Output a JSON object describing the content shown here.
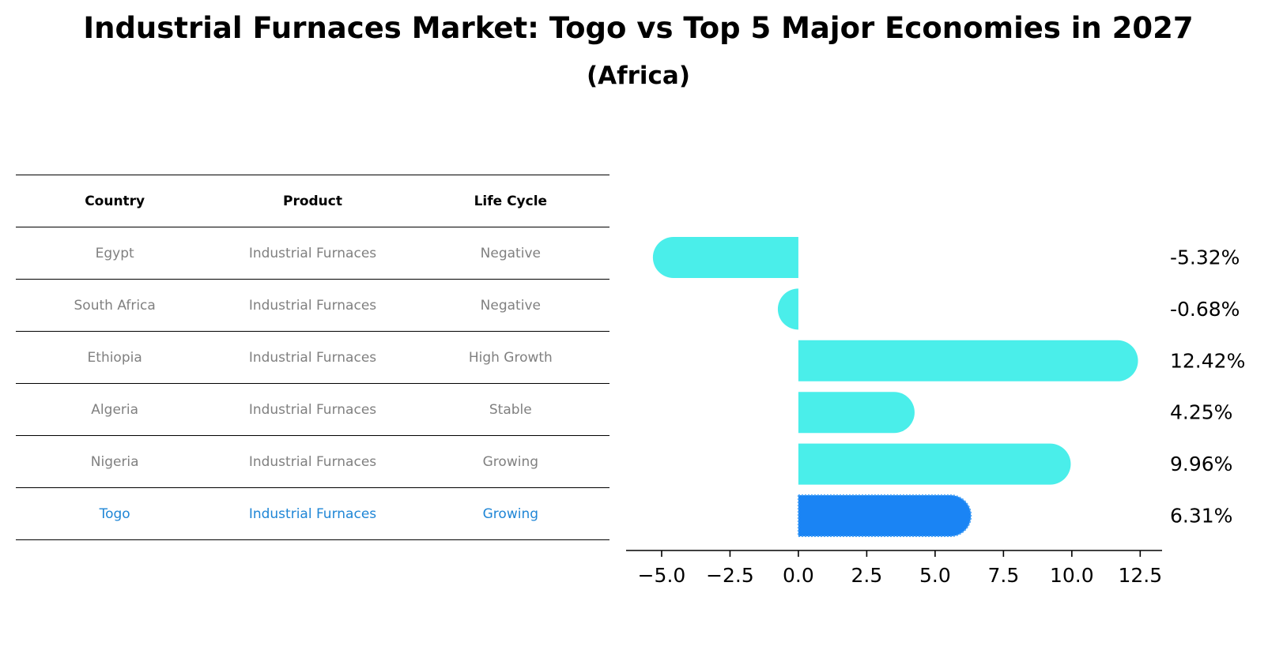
{
  "header": {
    "title": "Industrial Furnaces Market: Togo vs Top 5 Major Economies in 2027",
    "subtitle": "(Africa)"
  },
  "table": {
    "columns": [
      "Country",
      "Product",
      "Life Cycle"
    ],
    "rows": [
      {
        "country": "Egypt",
        "product": "Industrial Furnaces",
        "life_cycle": "Negative",
        "highlight": false
      },
      {
        "country": "South Africa",
        "product": "Industrial Furnaces",
        "life_cycle": "Negative",
        "highlight": false
      },
      {
        "country": "Ethiopia",
        "product": "Industrial Furnaces",
        "life_cycle": "High Growth",
        "highlight": false
      },
      {
        "country": "Algeria",
        "product": "Industrial Furnaces",
        "life_cycle": "Stable",
        "highlight": false
      },
      {
        "country": "Nigeria",
        "product": "Industrial Furnaces",
        "life_cycle": "Growing",
        "highlight": false
      },
      {
        "country": "Togo",
        "product": "Industrial Furnaces",
        "life_cycle": "Growing",
        "highlight": true
      }
    ]
  },
  "colors": {
    "bar": "#4aeeea",
    "bar_highlight": "#1a84f4",
    "table_text": "#808080",
    "table_highlight_text": "#1f86d6"
  },
  "chart_data": {
    "type": "bar",
    "orientation": "horizontal",
    "categories": [
      "Egypt",
      "South Africa",
      "Ethiopia",
      "Algeria",
      "Nigeria",
      "Togo"
    ],
    "values": [
      -5.32,
      -0.68,
      12.42,
      4.25,
      9.96,
      6.31
    ],
    "value_labels": [
      "-5.32%",
      "-0.68%",
      "12.42%",
      "4.25%",
      "9.96%",
      "6.31%"
    ],
    "highlight_category": "Togo",
    "xlim": [
      -6.3,
      13.3
    ],
    "xticks": [
      -5.0,
      -2.5,
      0.0,
      2.5,
      5.0,
      7.5,
      10.0,
      12.5
    ],
    "xtick_labels": [
      "−5.0",
      "−2.5",
      "0.0",
      "2.5",
      "5.0",
      "7.5",
      "10.0",
      "12.5"
    ],
    "xlabel": "",
    "ylabel": "",
    "grid": false,
    "legend": "none"
  }
}
